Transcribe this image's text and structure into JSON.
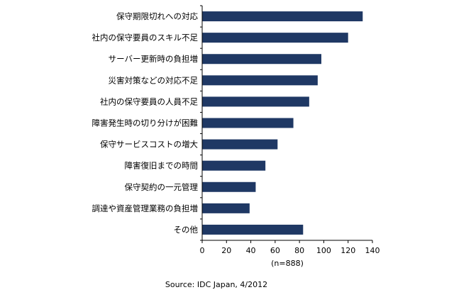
{
  "chart_data": {
    "type": "bar",
    "orientation": "horizontal",
    "categories": [
      "保守期限切れへの対応",
      "社内の保守要員のスキル不足",
      "サーバー更新時の負担増",
      "災害対策などの対応不足",
      "社内の保守要員の人員不足",
      "障害発生時の切り分けが困難",
      "保守サービスコストの増大",
      "障害復旧までの時間",
      "保守契約の一元管理",
      "調達や資産管理業務の負担増",
      "その他"
    ],
    "values": [
      132,
      120,
      98,
      95,
      88,
      75,
      62,
      52,
      44,
      39,
      83
    ],
    "xlim": [
      0,
      140
    ],
    "xticks": [
      "0",
      "20",
      "40",
      "60",
      "80",
      "100",
      "120",
      "140"
    ],
    "xtick_values": [
      0,
      20,
      40,
      60,
      80,
      100,
      120,
      140
    ],
    "x_note": "(n=888)",
    "grid": false,
    "bar_color": "#1f3864"
  },
  "source": "Source: IDC Japan, 4/2012"
}
